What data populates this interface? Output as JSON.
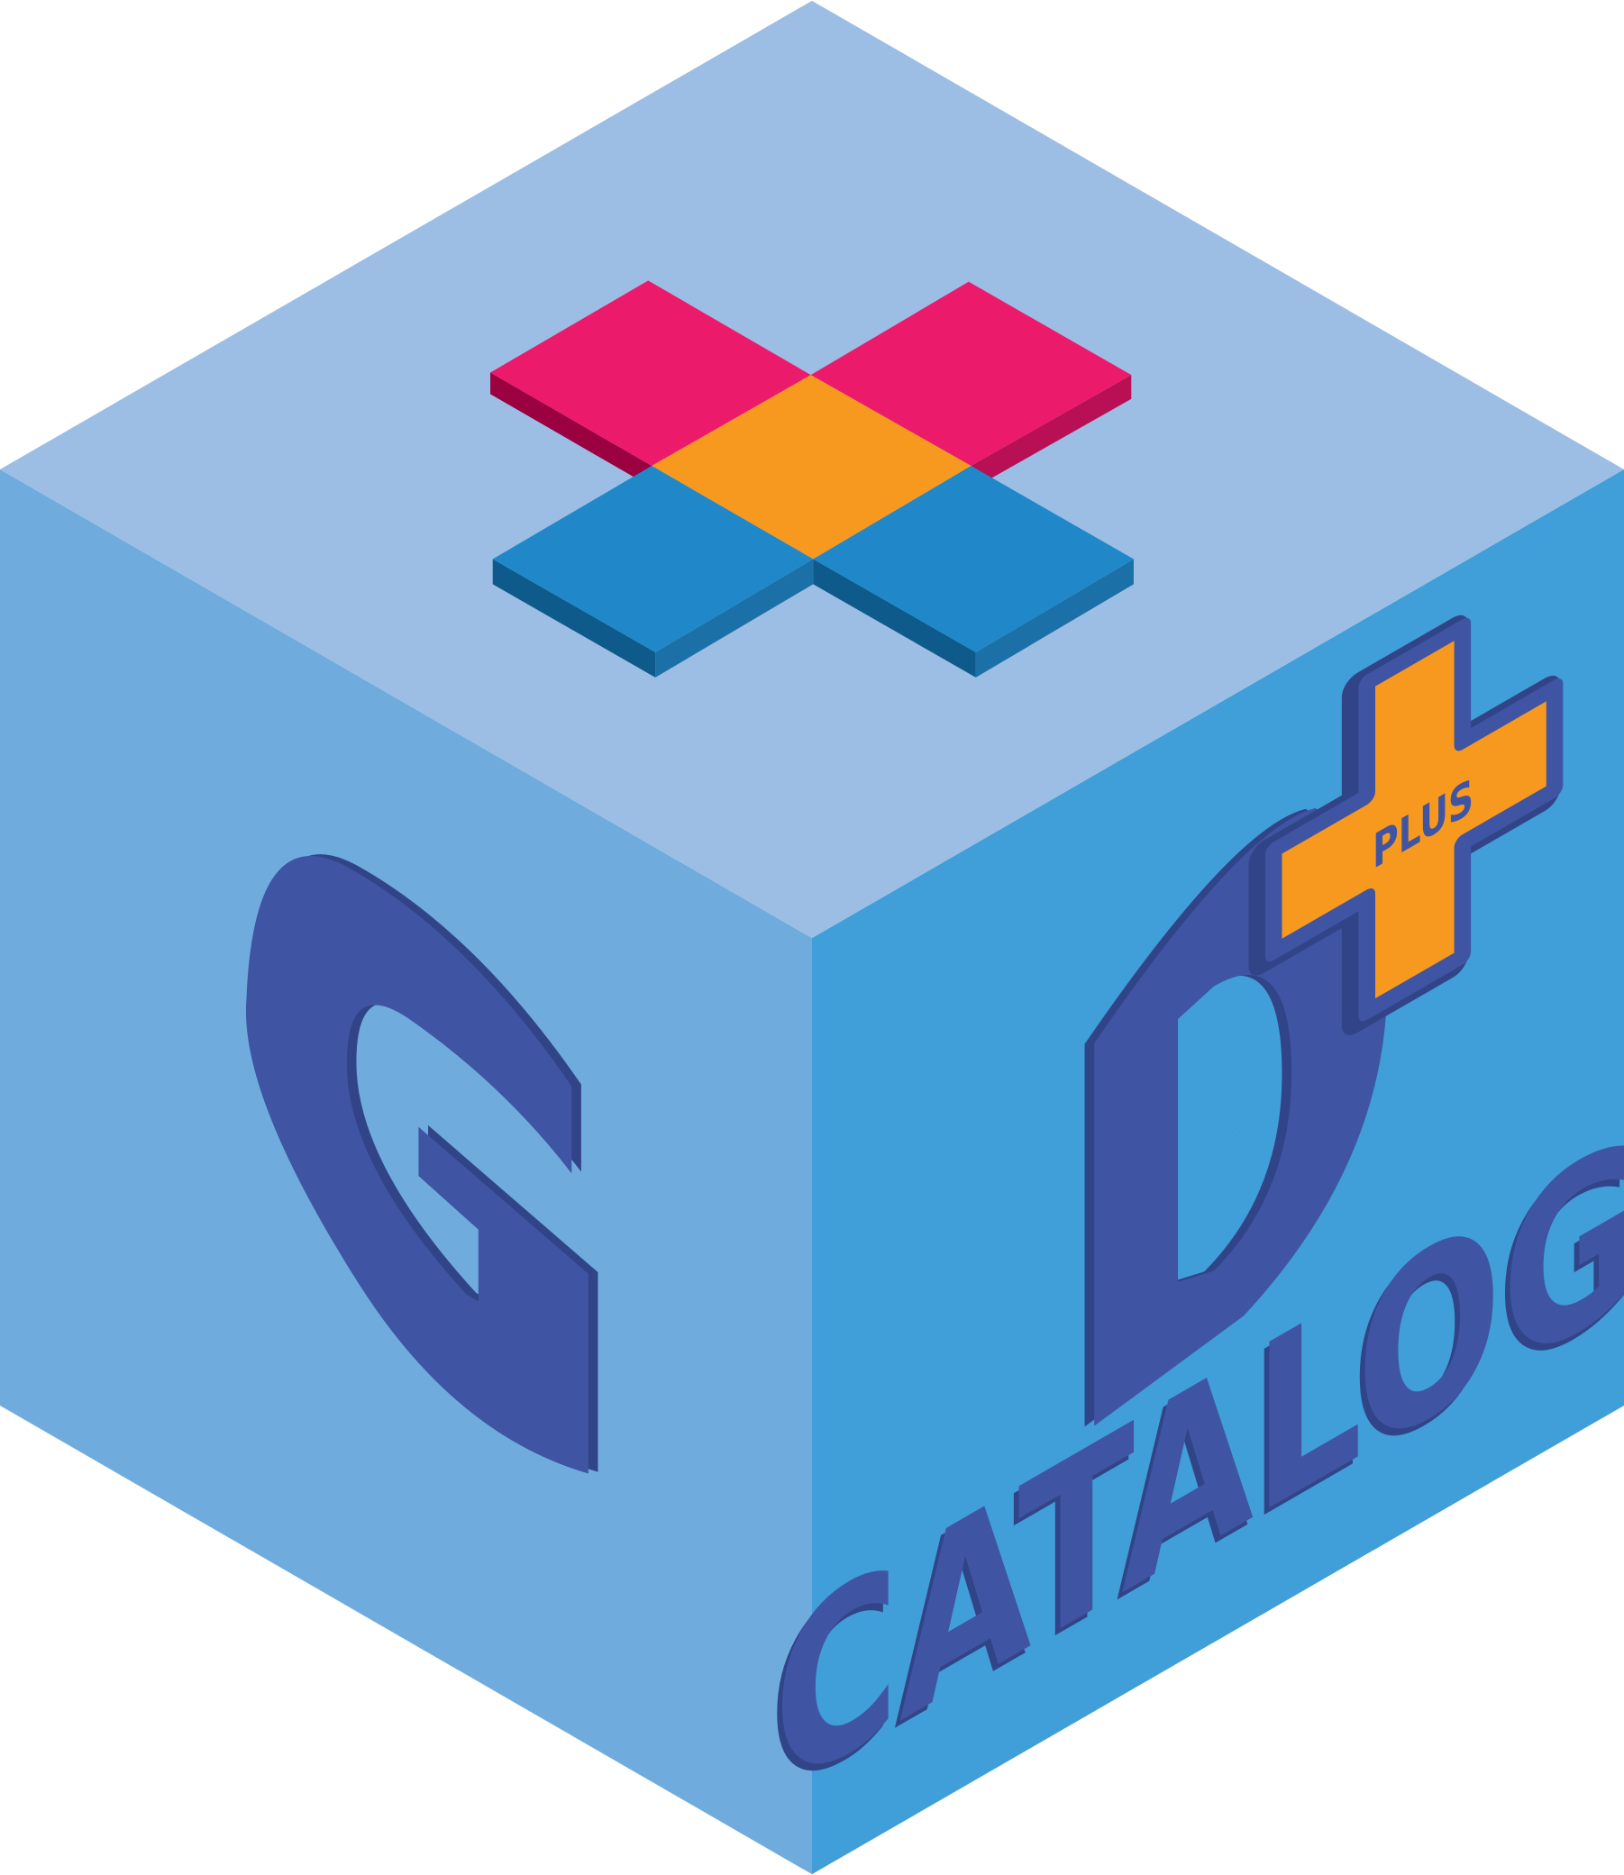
{
  "logo": {
    "letters": [
      "G",
      "D"
    ],
    "plus_badge": "PLUS",
    "catalog": "CATALOG"
  },
  "colors": {
    "top_face": "#9DBEE4",
    "left_face": "#6FACDD",
    "right_face": "#409ED8",
    "letter_front": "#3F55A3",
    "letter_side": "#324488",
    "tile_pink": "#EC1A6B",
    "tile_orange": "#F7991E",
    "tile_blue": "#2088C9",
    "badge_orange": "#F7991E"
  }
}
